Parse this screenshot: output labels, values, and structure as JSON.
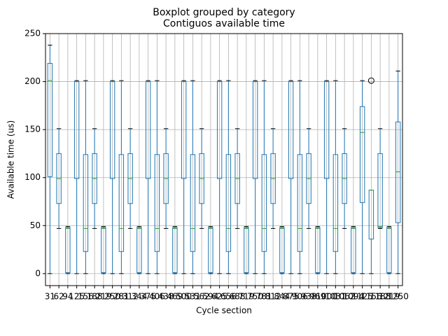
{
  "chart_data": {
    "type": "box",
    "suptitle": "Boxplot grouped by category",
    "title": "Contiguos available time",
    "x_label": "Cycle section",
    "y_label": "Available time (us)",
    "categories": [
      "31",
      "62",
      "94",
      "125",
      "156",
      "188",
      "219",
      "250",
      "281",
      "312",
      "344",
      "375",
      "406",
      "438",
      "469",
      "500",
      "531",
      "562",
      "594",
      "625",
      "656",
      "688",
      "719",
      "750",
      "781",
      "812",
      "844",
      "875",
      "906",
      "938",
      "969",
      "1000",
      "1031",
      "1062",
      "1094",
      "1125",
      "1156",
      "1188",
      "1219",
      "1250"
    ],
    "whislo": [
      0,
      47,
      0,
      0,
      0,
      47,
      0,
      0,
      0,
      47,
      0,
      0,
      0,
      47,
      0,
      0,
      0,
      47,
      0,
      0,
      0,
      47,
      0,
      0,
      0,
      47,
      0,
      0,
      0,
      47,
      0,
      0,
      0,
      47,
      0,
      0,
      0,
      47,
      0,
      0
    ],
    "q1": [
      101,
      73,
      1,
      99,
      23,
      73,
      1,
      99,
      23,
      73,
      1,
      99,
      23,
      73,
      1,
      99,
      23,
      73,
      1,
      99,
      23,
      73,
      1,
      99,
      23,
      73,
      1,
      99,
      23,
      73,
      1,
      99,
      23,
      73,
      1,
      74,
      36,
      48,
      1,
      53
    ],
    "median": [
      201,
      99,
      47,
      200,
      47,
      99,
      47,
      200,
      47,
      99,
      47,
      200,
      47,
      99,
      47,
      200,
      47,
      99,
      47,
      200,
      47,
      99,
      47,
      200,
      47,
      99,
      47,
      200,
      47,
      99,
      47,
      200,
      47,
      99,
      47,
      147,
      87,
      49,
      47,
      106
    ],
    "q3": [
      219,
      125,
      48,
      200,
      124,
      125,
      48,
      200,
      124,
      125,
      48,
      200,
      124,
      125,
      48,
      200,
      124,
      125,
      48,
      200,
      124,
      125,
      48,
      200,
      124,
      125,
      48,
      200,
      124,
      125,
      48,
      200,
      124,
      125,
      48,
      174,
      87,
      125,
      48,
      158
    ],
    "whishi": [
      238,
      151,
      49,
      201,
      201,
      151,
      49,
      201,
      201,
      151,
      49,
      201,
      201,
      151,
      49,
      201,
      201,
      151,
      49,
      201,
      201,
      151,
      49,
      201,
      201,
      151,
      49,
      201,
      201,
      151,
      49,
      201,
      201,
      151,
      49,
      201,
      87,
      151,
      49,
      211
    ],
    "fliers": [
      [],
      [],
      [],
      [],
      [],
      [],
      [],
      [],
      [],
      [],
      [],
      [],
      [],
      [],
      [],
      [],
      [],
      [],
      [],
      [],
      [],
      [],
      [],
      [],
      [],
      [],
      [],
      [],
      [],
      [],
      [],
      [],
      [],
      [],
      [],
      [],
      [
        201
      ],
      [],
      [],
      []
    ],
    "color": "#1f77b4",
    "median_color": "#2ca02c",
    "ylim": [
      -12.5,
      250
    ],
    "yticks": [
      0,
      50,
      100,
      150,
      200,
      250
    ],
    "grid": true
  }
}
